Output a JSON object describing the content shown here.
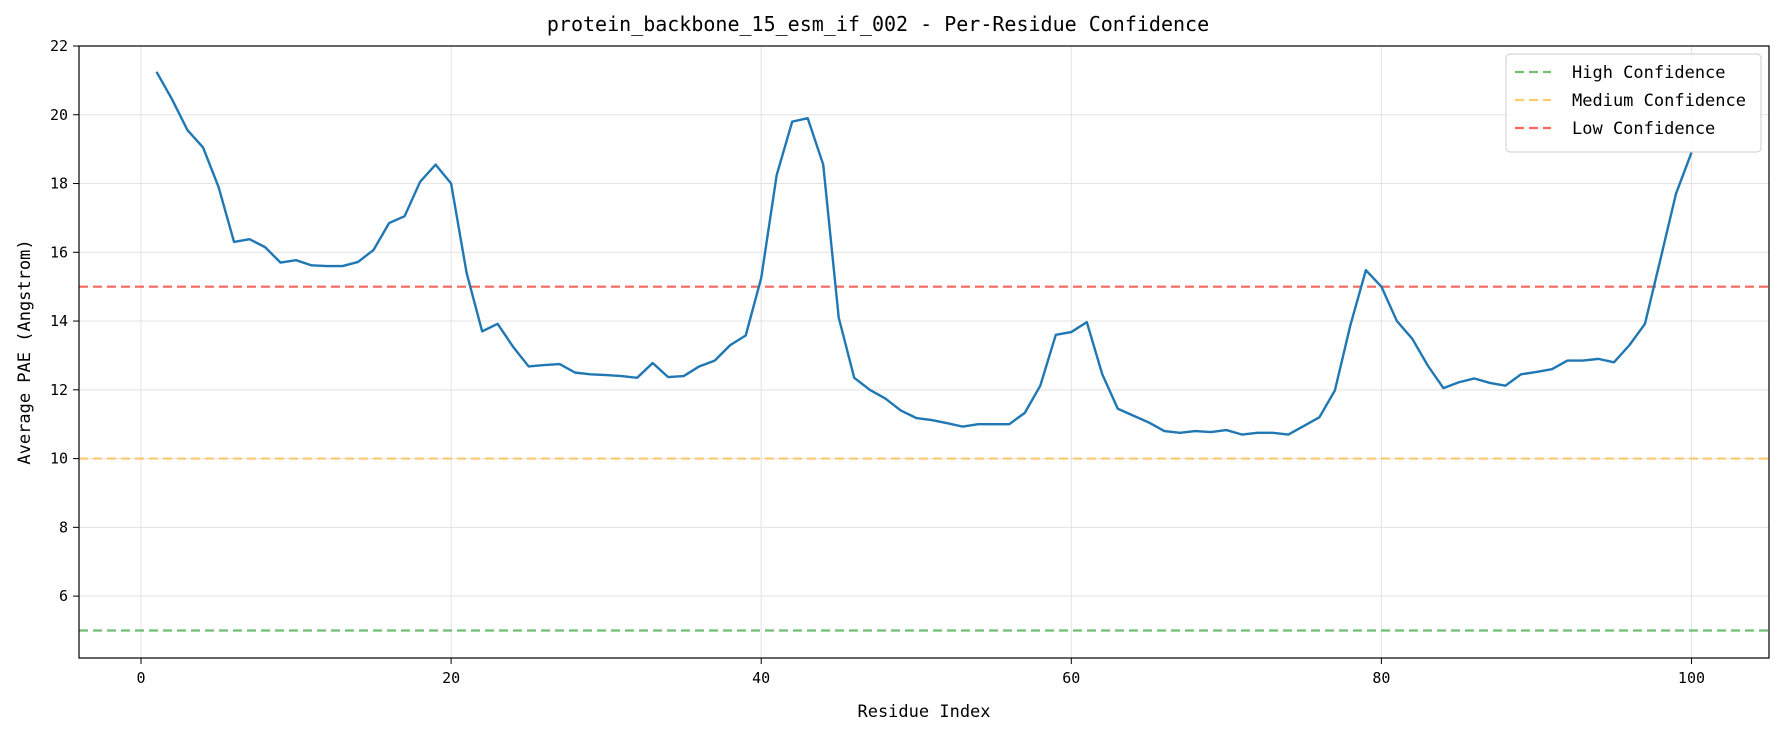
{
  "chart_data": {
    "type": "line",
    "title": "protein_backbone_15_esm_if_002 - Per-Residue Confidence",
    "xlabel": "Residue Index",
    "ylabel": "Average PAE (Angstrom)",
    "xlim": [
      -4,
      105
    ],
    "ylim": [
      4.2,
      22.0
    ],
    "xticks": [
      0,
      20,
      40,
      60,
      80,
      100
    ],
    "yticks": [
      6,
      8,
      10,
      12,
      14,
      16,
      18,
      20,
      22
    ],
    "grid": true,
    "legend_position": "top-right",
    "series": [
      {
        "name": "",
        "color": "#1f77b4",
        "x": [
          1,
          2,
          3,
          4,
          5,
          6,
          7,
          8,
          9,
          10,
          11,
          12,
          13,
          14,
          15,
          16,
          17,
          18,
          19,
          20,
          21,
          22,
          23,
          24,
          25,
          26,
          27,
          28,
          29,
          30,
          31,
          32,
          33,
          34,
          35,
          36,
          37,
          38,
          39,
          40,
          41,
          42,
          43,
          44,
          45,
          46,
          47,
          48,
          49,
          50,
          51,
          52,
          53,
          54,
          55,
          56,
          57,
          58,
          59,
          60,
          61,
          62,
          63,
          64,
          65,
          66,
          67,
          68,
          69,
          70,
          71,
          72,
          73,
          74,
          75,
          76,
          77,
          78,
          79,
          80,
          81,
          82,
          83,
          84,
          85,
          86,
          87,
          88,
          89,
          90,
          91,
          92,
          93,
          94,
          95,
          96,
          97,
          98,
          99,
          100
        ],
        "values": [
          21.25,
          20.45,
          19.55,
          19.05,
          17.9,
          16.3,
          16.38,
          16.15,
          15.7,
          15.77,
          15.62,
          15.6,
          15.6,
          15.72,
          16.07,
          16.85,
          17.05,
          18.05,
          18.55,
          18.0,
          15.4,
          13.7,
          13.92,
          13.25,
          12.68,
          12.72,
          12.75,
          12.5,
          12.45,
          12.43,
          12.4,
          12.35,
          12.78,
          12.37,
          12.4,
          12.68,
          12.85,
          13.3,
          13.58,
          15.25,
          18.25,
          19.8,
          19.9,
          18.55,
          14.1,
          12.35,
          12.0,
          11.75,
          11.4,
          11.18,
          11.12,
          11.03,
          10.93,
          11.0,
          11.0,
          11.0,
          11.33,
          12.12,
          13.6,
          13.68,
          13.97,
          12.45,
          11.45,
          11.25,
          11.05,
          10.8,
          10.75,
          10.8,
          10.77,
          10.83,
          10.7,
          10.75,
          10.75,
          10.7,
          10.95,
          11.2,
          11.98,
          13.88,
          15.48,
          15.0,
          14.0,
          13.48,
          12.7,
          12.05,
          12.22,
          12.33,
          12.2,
          12.12,
          12.45,
          12.52,
          12.6,
          12.85,
          12.85,
          12.9,
          12.8,
          13.3,
          13.92,
          15.8,
          17.7,
          18.9
        ]
      }
    ],
    "reference_lines": [
      {
        "name": "High Confidence",
        "y": 5,
        "color": "#4caf50"
      },
      {
        "name": "Medium Confidence",
        "y": 10,
        "color": "#ffc04d"
      },
      {
        "name": "Low Confidence",
        "y": 15,
        "color": "#f44336"
      }
    ]
  }
}
